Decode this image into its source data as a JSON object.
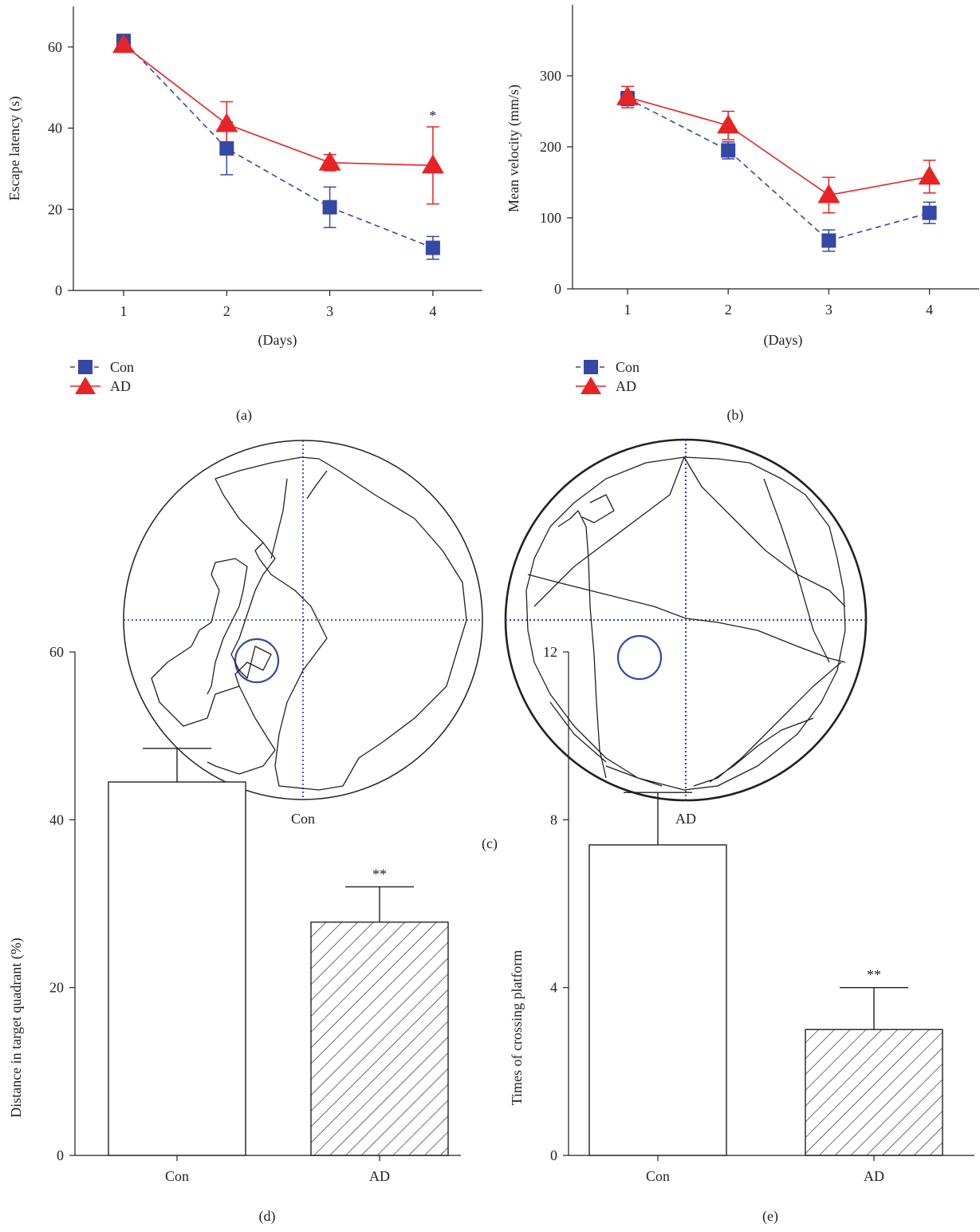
{
  "colors": {
    "con": "#3548a5",
    "ad": "#e82325",
    "ink": "#231f20",
    "grid_line": "#3548a5"
  },
  "panel_labels": [
    "(a)",
    "(b)",
    "(c)",
    "(d)",
    "(e)"
  ],
  "chart_data": [
    {
      "id": "a",
      "type": "line",
      "xlabel": "(Days)",
      "ylabel": "Escape latency (s)",
      "categories": [
        "1",
        "2",
        "3",
        "4"
      ],
      "ylim": [
        0,
        70
      ],
      "yticks": [
        0,
        20,
        40,
        60
      ],
      "legend_position": "bottom-left",
      "series": [
        {
          "name": "Con",
          "marker": "square",
          "line": "dashed",
          "values": [
            61.5,
            35.0,
            20.5,
            10.5
          ],
          "errors": [
            0,
            6.5,
            5.0,
            2.8
          ]
        },
        {
          "name": "AD",
          "marker": "triangle",
          "line": "solid",
          "values": [
            60.5,
            41.0,
            31.5,
            30.8
          ],
          "errors": [
            0,
            5.5,
            2.0,
            9.5
          ]
        }
      ],
      "annotations": [
        {
          "category": "4",
          "text": "*"
        }
      ]
    },
    {
      "id": "b",
      "type": "line",
      "xlabel": "(Days)",
      "ylabel": "Mean velocity (mm/s)",
      "categories": [
        "1",
        "2",
        "3",
        "4"
      ],
      "ylim": [
        0,
        400
      ],
      "yticks": [
        0,
        100,
        200,
        300
      ],
      "legend_position": "bottom-left",
      "series": [
        {
          "name": "Con",
          "marker": "square",
          "line": "dashed",
          "values": [
            268,
            195,
            68,
            107
          ],
          "errors": [
            10,
            12,
            15,
            15
          ]
        },
        {
          "name": "AD",
          "marker": "triangle",
          "line": "solid",
          "values": [
            270,
            230,
            132,
            158
          ],
          "errors": [
            15,
            20,
            25,
            23
          ]
        }
      ],
      "annotations": []
    },
    {
      "id": "d",
      "type": "bar",
      "xlabel": "",
      "ylabel": "Distance in target quadrant (%)",
      "categories": [
        "Con",
        "AD"
      ],
      "ylim": [
        0,
        60
      ],
      "yticks": [
        0,
        20,
        40,
        60
      ],
      "values": [
        44.5,
        27.8
      ],
      "errors": [
        4.0,
        4.2
      ],
      "patterns": [
        "none",
        "hatched"
      ],
      "annotations": [
        {
          "category": "AD",
          "text": "**"
        }
      ]
    },
    {
      "id": "e",
      "type": "bar",
      "xlabel": "",
      "ylabel": "Times of crossing platform",
      "categories": [
        "Con",
        "AD"
      ],
      "ylim": [
        0,
        12
      ],
      "yticks": [
        0,
        4,
        8,
        12
      ],
      "values": [
        7.4,
        3.0
      ],
      "errors": [
        1.25,
        1.0
      ],
      "patterns": [
        "none",
        "hatched"
      ],
      "annotations": [
        {
          "category": "AD",
          "text": "**"
        }
      ]
    }
  ],
  "track_panels": [
    {
      "label": "Con",
      "platform_quadrant": "bottom-left"
    },
    {
      "label": "AD",
      "platform_quadrant": "bottom-left"
    }
  ]
}
